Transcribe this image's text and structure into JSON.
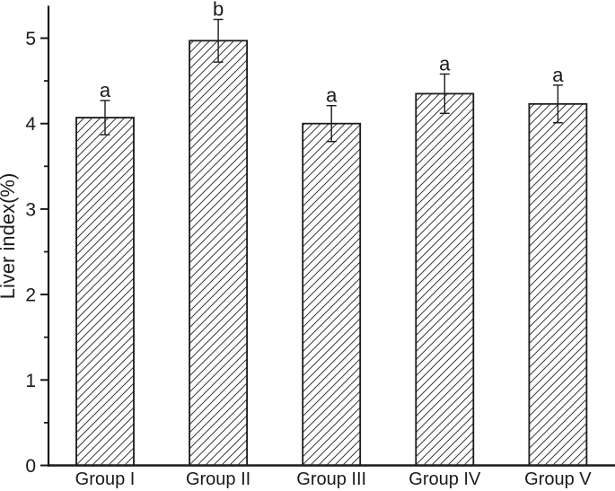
{
  "chart_data": {
    "type": "bar",
    "title": "",
    "xlabel": "",
    "ylabel": "Liver index(%)",
    "categories": [
      "Group I",
      "Group II",
      "Group III",
      "Group IV",
      "Group V"
    ],
    "values": [
      4.07,
      4.97,
      4.0,
      4.35,
      4.23
    ],
    "errors": [
      0.2,
      0.25,
      0.21,
      0.23,
      0.22
    ],
    "sig_letters": [
      "a",
      "b",
      "a",
      "a",
      "a"
    ],
    "ylim": [
      0,
      5.38
    ],
    "ytick_major": [
      0,
      1,
      2,
      3,
      4,
      5
    ],
    "ytick_minor": [
      0.5,
      1.5,
      2.5,
      3.5,
      4.5
    ],
    "grid": false,
    "legend": null,
    "bar_style": "diagonal-hatch",
    "axis_color": "#1a1a1a",
    "hatch_color": "#3a3a3a",
    "background": "#ffffff"
  }
}
